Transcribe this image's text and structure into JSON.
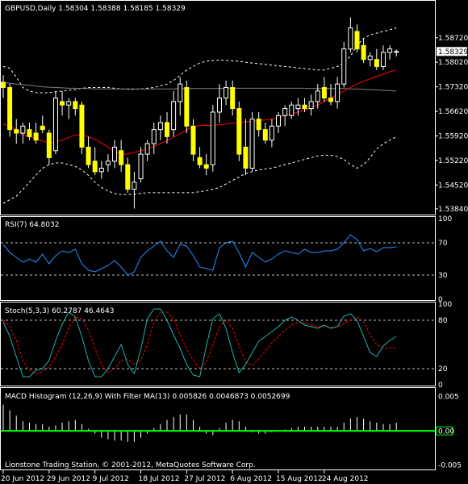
{
  "window": {
    "footer": "Lionstone Trading Station, © 2001-2012, MetaQuotes Software Corp."
  },
  "colors": {
    "background": "#000000",
    "frame": "#ffffff",
    "candle_up": "#000000",
    "candle_down": "#ffff00",
    "candle_outline": "#ffffff",
    "ma_fast": "#ff0000",
    "ma_slow": "#808080",
    "bands": "#ffffff",
    "rsi": "#1e90ff",
    "stoch_main": "#20b2aa",
    "stoch_signal": "#ff0000",
    "macd_hist": "#ffffff",
    "macd_filter": "#00ff00",
    "current_price_box": "#ffffff",
    "level_line": "#c0c0c0"
  },
  "chart_data": [
    {
      "type": "candlestick",
      "title": "GBPUSD,Daily  1.58304 1.58388 1.58185 1.58329",
      "current_price": 1.58329,
      "current_price_label": "1.58329",
      "ylim": [
        1.537,
        1.5975
      ],
      "y_ticks": [
        "1.58720",
        "1.58020",
        "1.57320",
        "1.56620",
        "1.55920",
        "1.55220",
        "1.54520",
        "1.53840"
      ],
      "y_tick_values": [
        1.5872,
        1.5802,
        1.5732,
        1.5662,
        1.5592,
        1.5522,
        1.5452,
        1.5384
      ],
      "x_ticks": [
        "20 Jun 2012",
        "29 Jun 2012",
        "9 Jul 2012",
        "18 Jul 2012",
        "27 Jul 2012",
        "6 Aug 2012",
        "15 Aug 2012",
        "24 Aug 2012"
      ],
      "x_tick_bar_index": [
        0,
        7,
        14,
        21,
        28,
        35,
        42,
        49
      ],
      "bars": [
        {
          "o": 1.5745,
          "h": 1.5765,
          "l": 1.57,
          "c": 1.573
        },
        {
          "o": 1.573,
          "h": 1.574,
          "l": 1.559,
          "c": 1.561
        },
        {
          "o": 1.561,
          "h": 1.564,
          "l": 1.557,
          "c": 1.56
        },
        {
          "o": 1.56,
          "h": 1.563,
          "l": 1.557,
          "c": 1.562
        },
        {
          "o": 1.561,
          "h": 1.563,
          "l": 1.558,
          "c": 1.559
        },
        {
          "o": 1.56,
          "h": 1.563,
          "l": 1.557,
          "c": 1.558
        },
        {
          "o": 1.562,
          "h": 1.565,
          "l": 1.56,
          "c": 1.561
        },
        {
          "o": 1.56,
          "h": 1.561,
          "l": 1.551,
          "c": 1.553
        },
        {
          "o": 1.555,
          "h": 1.572,
          "l": 1.554,
          "c": 1.57
        },
        {
          "o": 1.569,
          "h": 1.572,
          "l": 1.565,
          "c": 1.568
        },
        {
          "o": 1.568,
          "h": 1.57,
          "l": 1.564,
          "c": 1.569
        },
        {
          "o": 1.569,
          "h": 1.57,
          "l": 1.565,
          "c": 1.567
        },
        {
          "o": 1.568,
          "h": 1.569,
          "l": 1.554,
          "c": 1.556
        },
        {
          "o": 1.556,
          "h": 1.559,
          "l": 1.55,
          "c": 1.551
        },
        {
          "o": 1.552,
          "h": 1.556,
          "l": 1.548,
          "c": 1.549
        },
        {
          "o": 1.549,
          "h": 1.552,
          "l": 1.547,
          "c": 1.55
        },
        {
          "o": 1.551,
          "h": 1.554,
          "l": 1.549,
          "c": 1.552
        },
        {
          "o": 1.552,
          "h": 1.558,
          "l": 1.55,
          "c": 1.556
        },
        {
          "o": 1.555,
          "h": 1.558,
          "l": 1.549,
          "c": 1.551
        },
        {
          "o": 1.551,
          "h": 1.553,
          "l": 1.543,
          "c": 1.544
        },
        {
          "o": 1.544,
          "h": 1.549,
          "l": 1.5385,
          "c": 1.546
        },
        {
          "o": 1.547,
          "h": 1.556,
          "l": 1.546,
          "c": 1.554
        },
        {
          "o": 1.554,
          "h": 1.558,
          "l": 1.552,
          "c": 1.557
        },
        {
          "o": 1.557,
          "h": 1.563,
          "l": 1.554,
          "c": 1.561
        },
        {
          "o": 1.561,
          "h": 1.565,
          "l": 1.558,
          "c": 1.563
        },
        {
          "o": 1.563,
          "h": 1.566,
          "l": 1.557,
          "c": 1.559
        },
        {
          "o": 1.561,
          "h": 1.572,
          "l": 1.559,
          "c": 1.569
        },
        {
          "o": 1.569,
          "h": 1.576,
          "l": 1.565,
          "c": 1.574
        },
        {
          "o": 1.573,
          "h": 1.575,
          "l": 1.56,
          "c": 1.562
        },
        {
          "o": 1.562,
          "h": 1.564,
          "l": 1.552,
          "c": 1.554
        },
        {
          "o": 1.553,
          "h": 1.556,
          "l": 1.55,
          "c": 1.551
        },
        {
          "o": 1.551,
          "h": 1.554,
          "l": 1.548,
          "c": 1.55
        },
        {
          "o": 1.551,
          "h": 1.568,
          "l": 1.549,
          "c": 1.566
        },
        {
          "o": 1.566,
          "h": 1.574,
          "l": 1.563,
          "c": 1.57
        },
        {
          "o": 1.57,
          "h": 1.575,
          "l": 1.568,
          "c": 1.573
        },
        {
          "o": 1.573,
          "h": 1.575,
          "l": 1.565,
          "c": 1.567
        },
        {
          "o": 1.567,
          "h": 1.569,
          "l": 1.552,
          "c": 1.554
        },
        {
          "o": 1.556,
          "h": 1.564,
          "l": 1.548,
          "c": 1.55
        },
        {
          "o": 1.55,
          "h": 1.566,
          "l": 1.549,
          "c": 1.564
        },
        {
          "o": 1.564,
          "h": 1.566,
          "l": 1.559,
          "c": 1.561
        },
        {
          "o": 1.561,
          "h": 1.563,
          "l": 1.557,
          "c": 1.558
        },
        {
          "o": 1.558,
          "h": 1.564,
          "l": 1.556,
          "c": 1.562
        },
        {
          "o": 1.562,
          "h": 1.566,
          "l": 1.56,
          "c": 1.565
        },
        {
          "o": 1.565,
          "h": 1.568,
          "l": 1.562,
          "c": 1.567
        },
        {
          "o": 1.565,
          "h": 1.569,
          "l": 1.564,
          "c": 1.568
        },
        {
          "o": 1.567,
          "h": 1.57,
          "l": 1.565,
          "c": 1.568
        },
        {
          "o": 1.568,
          "h": 1.57,
          "l": 1.566,
          "c": 1.567
        },
        {
          "o": 1.567,
          "h": 1.571,
          "l": 1.565,
          "c": 1.569
        },
        {
          "o": 1.569,
          "h": 1.574,
          "l": 1.567,
          "c": 1.572
        },
        {
          "o": 1.573,
          "h": 1.576,
          "l": 1.569,
          "c": 1.57
        },
        {
          "o": 1.57,
          "h": 1.574,
          "l": 1.568,
          "c": 1.569
        },
        {
          "o": 1.569,
          "h": 1.576,
          "l": 1.567,
          "c": 1.574
        },
        {
          "o": 1.574,
          "h": 1.586,
          "l": 1.573,
          "c": 1.584
        },
        {
          "o": 1.584,
          "h": 1.593,
          "l": 1.583,
          "c": 1.59
        },
        {
          "o": 1.589,
          "h": 1.591,
          "l": 1.583,
          "c": 1.584
        },
        {
          "o": 1.585,
          "h": 1.587,
          "l": 1.58,
          "c": 1.581
        },
        {
          "o": 1.581,
          "h": 1.583,
          "l": 1.579,
          "c": 1.582
        },
        {
          "o": 1.581,
          "h": 1.584,
          "l": 1.578,
          "c": 1.579
        },
        {
          "o": 1.579,
          "h": 1.585,
          "l": 1.578,
          "c": 1.583
        },
        {
          "o": 1.583,
          "h": 1.585,
          "l": 1.581,
          "c": 1.584
        },
        {
          "o": 1.58304,
          "h": 1.58388,
          "l": 1.58185,
          "c": 1.58329
        }
      ],
      "ma_fast": [
        1.5625,
        1.562,
        1.561,
        1.5595,
        1.559,
        1.5585,
        1.5578,
        1.5572,
        1.5575,
        1.558,
        1.5588,
        1.5595,
        1.5595,
        1.559,
        1.5582,
        1.5572,
        1.556,
        1.5548,
        1.554,
        1.554,
        1.5545,
        1.555,
        1.5555,
        1.5562,
        1.557,
        1.5578,
        1.5588,
        1.5598,
        1.561,
        1.5618,
        1.5622,
        1.5622,
        1.5622,
        1.5624,
        1.5626,
        1.5628,
        1.563,
        1.5632,
        1.5634,
        1.5636,
        1.5638,
        1.564,
        1.5645,
        1.565,
        1.5655,
        1.566,
        1.5665,
        1.5672,
        1.568,
        1.569,
        1.57,
        1.571,
        1.572,
        1.573,
        1.574,
        1.5748,
        1.5755,
        1.5762,
        1.5768,
        1.5775,
        1.578
      ],
      "ma_slow": [
        1.5745,
        1.5742,
        1.574,
        1.5738,
        1.5736,
        1.5734,
        1.5732,
        1.5731,
        1.573,
        1.5729,
        1.5728,
        1.5728,
        1.5727,
        1.5727,
        1.5726,
        1.5726,
        1.5726,
        1.5726,
        1.5726,
        1.5726,
        1.5726,
        1.5726,
        1.5726,
        1.5726,
        1.5726,
        1.5726,
        1.5726,
        1.5727,
        1.5727,
        1.5727,
        1.5727,
        1.5727,
        1.5727,
        1.5727,
        1.5728,
        1.5728,
        1.5728,
        1.5728,
        1.5728,
        1.5728,
        1.5728,
        1.5728,
        1.5728,
        1.5728,
        1.5728,
        1.5728,
        1.5728,
        1.5727,
        1.5727,
        1.5727,
        1.5727,
        1.5727,
        1.5727,
        1.5726,
        1.5726,
        1.5725,
        1.5724,
        1.5723,
        1.5722,
        1.5721,
        1.572
      ],
      "band_upper": [
        1.579,
        1.5785,
        1.576,
        1.573,
        1.572,
        1.5715,
        1.5715,
        1.5715,
        1.5718,
        1.572,
        1.5722,
        1.5724,
        1.5728,
        1.573,
        1.573,
        1.573,
        1.573,
        1.5728,
        1.5726,
        1.5725,
        1.5725,
        1.5726,
        1.5728,
        1.573,
        1.5735,
        1.574,
        1.575,
        1.5765,
        1.578,
        1.579,
        1.58,
        1.5805,
        1.5807,
        1.5808,
        1.5808,
        1.5806,
        1.5805,
        1.5802,
        1.58,
        1.5798,
        1.5796,
        1.5794,
        1.5792,
        1.579,
        1.5788,
        1.5786,
        1.5784,
        1.5782,
        1.578,
        1.578,
        1.5785,
        1.579,
        1.58,
        1.582,
        1.585,
        1.587,
        1.588,
        1.5885,
        1.589,
        1.5895,
        1.59
      ],
      "band_lower": [
        1.54,
        1.541,
        1.542,
        1.544,
        1.546,
        1.548,
        1.55,
        1.551,
        1.5515,
        1.5515,
        1.551,
        1.5505,
        1.5495,
        1.548,
        1.546,
        1.5445,
        1.5435,
        1.5428,
        1.5425,
        1.5425,
        1.5426,
        1.5428,
        1.543,
        1.543,
        1.543,
        1.543,
        1.543,
        1.543,
        1.543,
        1.543,
        1.5433,
        1.5436,
        1.544,
        1.5445,
        1.5455,
        1.5465,
        1.5475,
        1.5485,
        1.549,
        1.5495,
        1.5498,
        1.55,
        1.5505,
        1.551,
        1.5515,
        1.552,
        1.5525,
        1.553,
        1.5535,
        1.5537,
        1.5537,
        1.5533,
        1.5525,
        1.551,
        1.55,
        1.551,
        1.553,
        1.5555,
        1.557,
        1.558,
        1.559
      ]
    },
    {
      "type": "line",
      "title": "RSI(7) 64.8032",
      "ylim": [
        0,
        100
      ],
      "levels": [
        70,
        30
      ],
      "y_ticks": [
        "100",
        "70",
        "30",
        "0"
      ],
      "values": [
        68,
        58,
        52,
        46,
        50,
        46,
        56,
        44,
        54,
        60,
        58,
        62,
        44,
        36,
        34,
        38,
        42,
        48,
        40,
        30,
        34,
        52,
        60,
        66,
        72,
        60,
        52,
        68,
        66,
        54,
        40,
        38,
        36,
        64,
        70,
        72,
        58,
        40,
        58,
        52,
        46,
        50,
        56,
        60,
        58,
        56,
        62,
        58,
        58,
        60,
        60,
        62,
        70,
        80,
        74,
        60,
        63,
        59,
        64,
        64,
        65
      ]
    },
    {
      "type": "line",
      "title": "Stoch(5,3,3) 60.2787 46.4643",
      "ylim": [
        0,
        100
      ],
      "levels": [
        80,
        20
      ],
      "y_ticks": [
        "100",
        "80",
        "20",
        "0"
      ],
      "series": [
        {
          "values": [
            78,
            60,
            35,
            10,
            10,
            18,
            20,
            30,
            55,
            75,
            90,
            84,
            60,
            30,
            10,
            10,
            20,
            35,
            50,
            25,
            14,
            44,
            82,
            94,
            94,
            80,
            62,
            45,
            25,
            12,
            10,
            48,
            82,
            88,
            70,
            40,
            15,
            25,
            40,
            54,
            60,
            66,
            72,
            80,
            84,
            80,
            74,
            72,
            70,
            74,
            70,
            72,
            85,
            88,
            80,
            60,
            40,
            35,
            48,
            55,
            60
          ]
        },
        {
          "values": [
            80,
            72,
            55,
            30,
            18,
            14,
            16,
            22,
            35,
            50,
            70,
            84,
            82,
            68,
            45,
            25,
            15,
            20,
            30,
            32,
            25,
            30,
            50,
            78,
            90,
            90,
            82,
            62,
            44,
            30,
            20,
            28,
            50,
            72,
            80,
            70,
            48,
            28,
            24,
            32,
            42,
            52,
            60,
            68,
            74,
            78,
            76,
            74,
            72,
            72,
            71,
            72,
            76,
            80,
            84,
            78,
            62,
            50,
            45,
            46,
            46
          ]
        }
      ]
    },
    {
      "type": "bar",
      "title": "MACD Histogram (12,26,9) With Filter MA(13) 0.005826 0.0046873 0.0052699",
      "ylim": [
        -0.0055,
        0.006
      ],
      "y_ticks": [
        "0.005",
        "0.00",
        "-0.005"
      ],
      "zero_label": "0.00",
      "values": [
        0.0038,
        0.003,
        0.0022,
        0.0014,
        0.0012,
        0.001,
        0.001,
        0.0006,
        0.0008,
        0.0012,
        0.0014,
        0.0016,
        0.001,
        0.0003,
        -0.0004,
        -0.001,
        -0.0012,
        -0.0014,
        -0.0014,
        -0.0016,
        -0.0016,
        -0.001,
        -0.0004,
        0.0004,
        0.001,
        0.0016,
        0.002,
        0.0024,
        0.0024,
        0.0016,
        0.0006,
        -0.0004,
        -0.0006,
        0.0004,
        0.0012,
        0.0016,
        0.0014,
        0.0006,
        -0.0002,
        -0.0004,
        -0.0004,
        -0.0002,
        0.0,
        0.0002,
        0.0004,
        0.0006,
        0.0006,
        0.0006,
        0.0006,
        0.0006,
        0.0006,
        0.0006,
        0.0012,
        0.0018,
        0.002,
        0.0018,
        0.0014,
        0.0012,
        0.001,
        0.001,
        0.0012
      ]
    }
  ]
}
